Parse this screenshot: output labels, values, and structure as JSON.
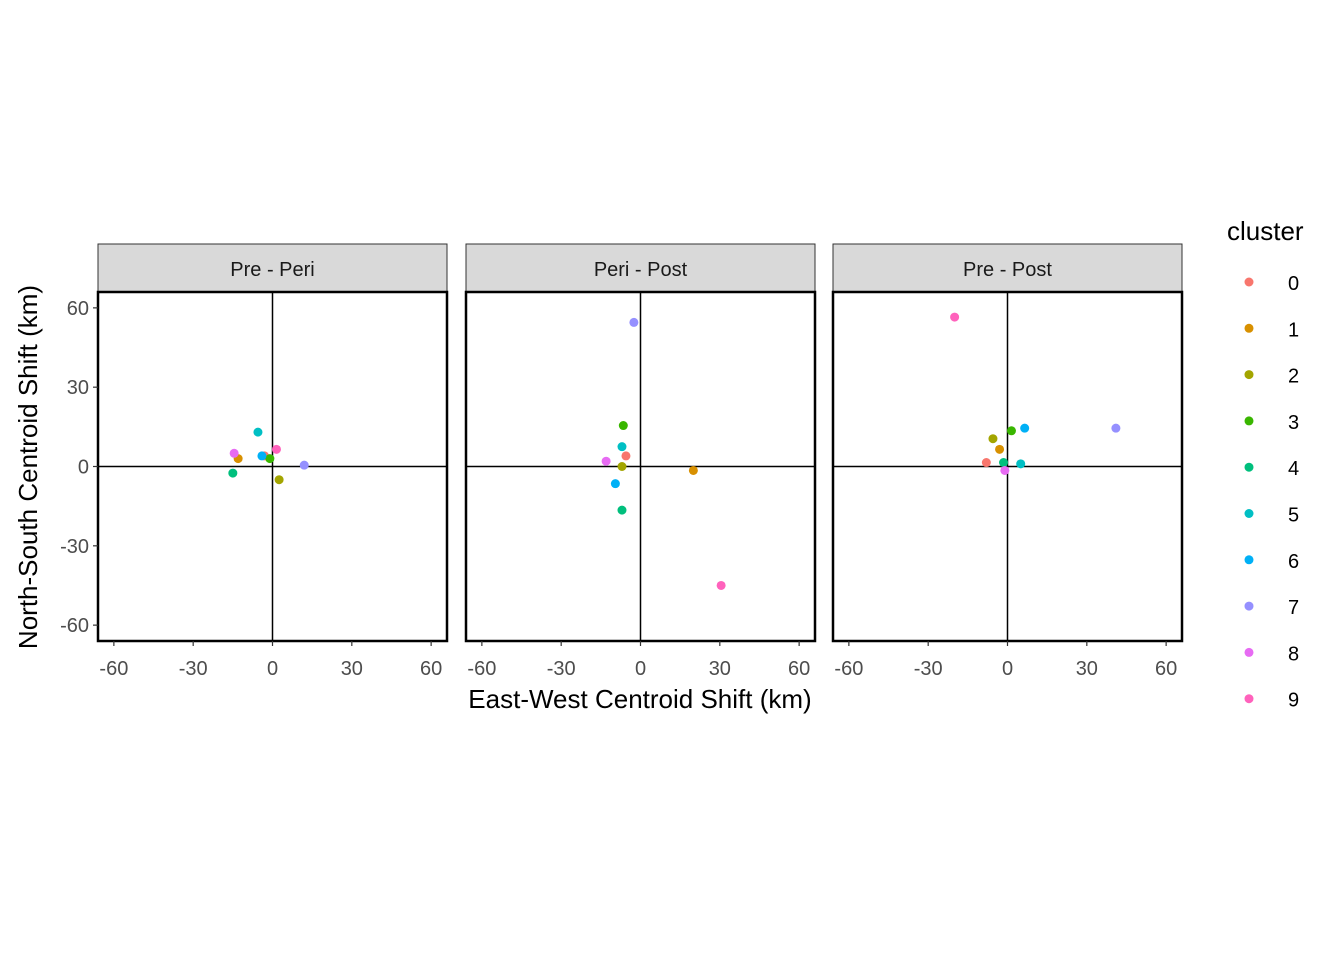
{
  "chart_data": {
    "type": "scatter",
    "xlabel": "East-West Centroid Shift (km)",
    "ylabel": "North-South Centroid Shift (km)",
    "xlim": [
      -66,
      66
    ],
    "ylim": [
      -66,
      66
    ],
    "x_ticks": [
      -60,
      -30,
      0,
      30,
      60
    ],
    "y_ticks": [
      -60,
      -30,
      0,
      30,
      60
    ],
    "x_tick_labels": [
      "-60",
      "-30",
      "0",
      "30",
      "60"
    ],
    "y_tick_labels": [
      "-60",
      "-30",
      "0",
      "30",
      "60"
    ],
    "grid": false,
    "reference_lines": {
      "x": 0,
      "y": 0
    },
    "legend": {
      "title": "cluster",
      "placement": "right",
      "entries": [
        {
          "label": "0",
          "color": "#F8766D"
        },
        {
          "label": "1",
          "color": "#D89000"
        },
        {
          "label": "2",
          "color": "#A3A500"
        },
        {
          "label": "3",
          "color": "#39B600"
        },
        {
          "label": "4",
          "color": "#00BF7D"
        },
        {
          "label": "5",
          "color": "#00BFC4"
        },
        {
          "label": "6",
          "color": "#00B0F6"
        },
        {
          "label": "7",
          "color": "#9590FF"
        },
        {
          "label": "8",
          "color": "#E76BF3"
        },
        {
          "label": "9",
          "color": "#FF62BC"
        }
      ]
    },
    "panels": [
      {
        "title": "Pre - Peri",
        "points": [
          {
            "cluster": "0",
            "x": -3,
            "y": 4
          },
          {
            "cluster": "1",
            "x": -13,
            "y": 3
          },
          {
            "cluster": "2",
            "x": 2.5,
            "y": -5
          },
          {
            "cluster": "3",
            "x": -1,
            "y": 3
          },
          {
            "cluster": "4",
            "x": -15,
            "y": -2.5
          },
          {
            "cluster": "5",
            "x": -5.5,
            "y": 13
          },
          {
            "cluster": "6",
            "x": -4,
            "y": 4
          },
          {
            "cluster": "7",
            "x": 12,
            "y": 0.5
          },
          {
            "cluster": "8",
            "x": -14.5,
            "y": 5
          },
          {
            "cluster": "9",
            "x": 1.5,
            "y": 6.5
          }
        ]
      },
      {
        "title": "Peri - Post",
        "points": [
          {
            "cluster": "0",
            "x": -5.5,
            "y": 4
          },
          {
            "cluster": "1",
            "x": 20,
            "y": -1.5
          },
          {
            "cluster": "2",
            "x": -7,
            "y": 0
          },
          {
            "cluster": "3",
            "x": -6.5,
            "y": 15.5
          },
          {
            "cluster": "4",
            "x": -7,
            "y": -16.5
          },
          {
            "cluster": "5",
            "x": -7,
            "y": 7.5
          },
          {
            "cluster": "6",
            "x": -9.5,
            "y": -6.5
          },
          {
            "cluster": "7",
            "x": -2.5,
            "y": 54.5
          },
          {
            "cluster": "8",
            "x": -13,
            "y": 2
          },
          {
            "cluster": "9",
            "x": 30.5,
            "y": -45
          }
        ]
      },
      {
        "title": "Pre - Post",
        "points": [
          {
            "cluster": "0",
            "x": -8,
            "y": 1.5
          },
          {
            "cluster": "1",
            "x": -3,
            "y": 6.5
          },
          {
            "cluster": "2",
            "x": -5.5,
            "y": 10.5
          },
          {
            "cluster": "3",
            "x": 1.5,
            "y": 13.5
          },
          {
            "cluster": "4",
            "x": -1.5,
            "y": 1.5
          },
          {
            "cluster": "5",
            "x": 5,
            "y": 1
          },
          {
            "cluster": "6",
            "x": 6.5,
            "y": 14.5
          },
          {
            "cluster": "7",
            "x": 41,
            "y": 14.5
          },
          {
            "cluster": "8",
            "x": -1,
            "y": -1.5
          },
          {
            "cluster": "9",
            "x": -20,
            "y": 56.5
          }
        ]
      }
    ]
  }
}
